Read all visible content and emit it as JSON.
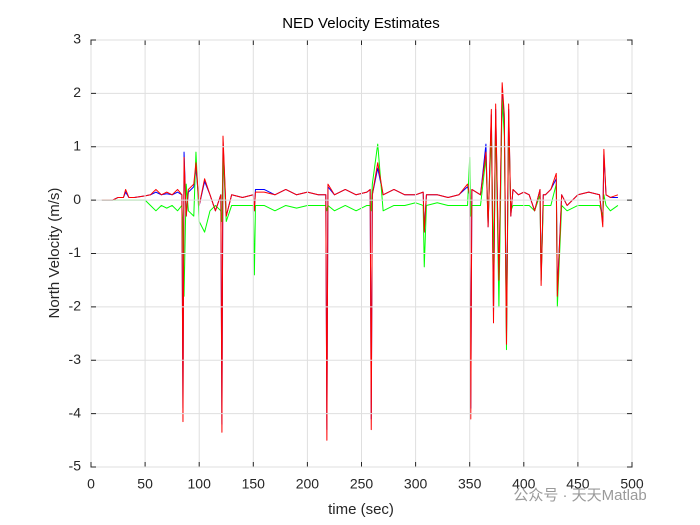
{
  "chart_data": {
    "type": "line",
    "title": "NED Velocity Estimates",
    "xlabel": "time (sec)",
    "ylabel": "North Velocity (m/s)",
    "xlim": [
      0,
      500
    ],
    "xticks": [
      0,
      50,
      100,
      150,
      200,
      250,
      300,
      350,
      400,
      450,
      500
    ],
    "ylim": [
      -5,
      3
    ],
    "yticks": [
      -5,
      -4,
      -3,
      -2,
      -1,
      0,
      1,
      2,
      3
    ],
    "grid": true,
    "watermark": "公众号 · 天天Matlab",
    "x": [
      10,
      20,
      25,
      30,
      32,
      35,
      40,
      50,
      55,
      60,
      65,
      70,
      75,
      80,
      84,
      85,
      86,
      88,
      90,
      95,
      97,
      100,
      105,
      110,
      115,
      120,
      121,
      122,
      125,
      130,
      140,
      150,
      151,
      152,
      160,
      170,
      180,
      190,
      200,
      210,
      217,
      218,
      219,
      225,
      235,
      245,
      255,
      258,
      259,
      260,
      265,
      270,
      280,
      290,
      300,
      307,
      308,
      310,
      320,
      330,
      340,
      348,
      350,
      351,
      352,
      360,
      365,
      367,
      370,
      372,
      374,
      377,
      380,
      382,
      384,
      386,
      388,
      390,
      395,
      400,
      405,
      410,
      415,
      416,
      418,
      420,
      425,
      430,
      431,
      435,
      440,
      450,
      460,
      470,
      473,
      474,
      476,
      480,
      487
    ],
    "series": [
      {
        "name": "blue",
        "color": "#0000ff",
        "values": [
          0,
          0,
          0.05,
          0.05,
          0.15,
          0.05,
          0.05,
          0.08,
          0.1,
          0.15,
          0.1,
          0.12,
          0.1,
          0.15,
          0.1,
          -3.9,
          0.9,
          -0.3,
          0.15,
          0.25,
          0.6,
          -0.1,
          0.35,
          0.1,
          -0.2,
          0.1,
          -4.2,
          1.1,
          -0.3,
          0.1,
          0.05,
          0.1,
          -0.2,
          0.2,
          0.2,
          0.1,
          0.2,
          0.1,
          0.15,
          0.1,
          0.1,
          -4.3,
          0.25,
          0.1,
          0.2,
          0.1,
          0.15,
          0.2,
          -4.1,
          0.1,
          0.6,
          0.1,
          0.2,
          0.1,
          0.1,
          0.15,
          -0.6,
          0.1,
          0.1,
          0.05,
          0.1,
          0.25,
          0.1,
          -3.9,
          0.2,
          0.1,
          1.05,
          -0.5,
          1.6,
          -2.1,
          1.7,
          -1.5,
          2.1,
          1.5,
          -2.5,
          1.7,
          -0.3,
          0.2,
          0.1,
          0.15,
          0.1,
          -0.2,
          0.2,
          -1.5,
          0.1,
          0.1,
          0.2,
          0.4,
          -1.7,
          0.1,
          -0.1,
          0.1,
          0.15,
          0.1,
          -0.4,
          0.85,
          0.1,
          0.05,
          0.05
        ]
      },
      {
        "name": "green",
        "color": "#00ff00",
        "values": [
          0,
          0,
          0,
          0,
          0,
          0,
          0,
          0,
          -0.1,
          -0.2,
          -0.1,
          -0.15,
          -0.1,
          -0.2,
          -0.1,
          -0.5,
          -1.8,
          0.3,
          -0.2,
          -0.3,
          0.9,
          -0.4,
          -0.6,
          -0.2,
          -0.1,
          -0.2,
          -0.4,
          0.9,
          -0.4,
          -0.1,
          -0.1,
          -0.1,
          -1.4,
          -0.1,
          -0.1,
          -0.2,
          -0.1,
          -0.15,
          -0.1,
          -0.1,
          -0.1,
          -0.2,
          -0.1,
          -0.2,
          -0.1,
          -0.2,
          -0.1,
          -0.1,
          -0.2,
          0.3,
          1.05,
          -0.2,
          -0.1,
          -0.1,
          -0.05,
          -0.1,
          -1.25,
          -0.1,
          -0.05,
          -0.1,
          -0.1,
          -0.1,
          0.8,
          -0.3,
          -0.1,
          -0.1,
          0.8,
          -0.4,
          1.3,
          -1.2,
          1.5,
          -2.0,
          1.9,
          1.2,
          -2.8,
          1.5,
          -0.2,
          -0.1,
          -0.1,
          -0.1,
          -0.1,
          -0.2,
          0.1,
          -1.5,
          -0.1,
          -0.1,
          -0.1,
          0.3,
          -2.0,
          -0.1,
          -0.2,
          -0.1,
          -0.1,
          -0.1,
          -0.3,
          0.1,
          -0.1,
          -0.2,
          -0.1
        ]
      },
      {
        "name": "red",
        "color": "#ff0000",
        "values": [
          0,
          0,
          0.05,
          0.05,
          0.2,
          0.05,
          0.05,
          0.08,
          0.1,
          0.2,
          0.1,
          0.15,
          0.1,
          0.2,
          0.1,
          -4.15,
          0.8,
          -0.3,
          0.2,
          0.3,
          0.7,
          -0.1,
          0.4,
          0.1,
          -0.2,
          0.1,
          -4.35,
          1.2,
          -0.3,
          0.1,
          0.05,
          0.1,
          -0.2,
          0.15,
          0.15,
          0.1,
          0.2,
          0.1,
          0.15,
          0.1,
          0.1,
          -4.5,
          0.3,
          0.1,
          0.2,
          0.1,
          0.15,
          0.2,
          -4.3,
          0.1,
          0.7,
          0.1,
          0.2,
          0.1,
          0.1,
          0.15,
          -0.6,
          0.1,
          0.1,
          0.05,
          0.1,
          0.3,
          0.1,
          -4.1,
          0.2,
          0.1,
          0.9,
          -0.5,
          1.7,
          -2.3,
          1.8,
          -1.5,
          2.2,
          1.6,
          -2.7,
          1.8,
          -0.3,
          0.2,
          0.1,
          0.15,
          0.1,
          -0.2,
          0.2,
          -1.6,
          0.1,
          0.1,
          0.2,
          0.5,
          -1.8,
          0.1,
          -0.1,
          0.1,
          0.15,
          0.1,
          -0.5,
          0.95,
          0.1,
          0.05,
          0.1
        ]
      }
    ]
  }
}
